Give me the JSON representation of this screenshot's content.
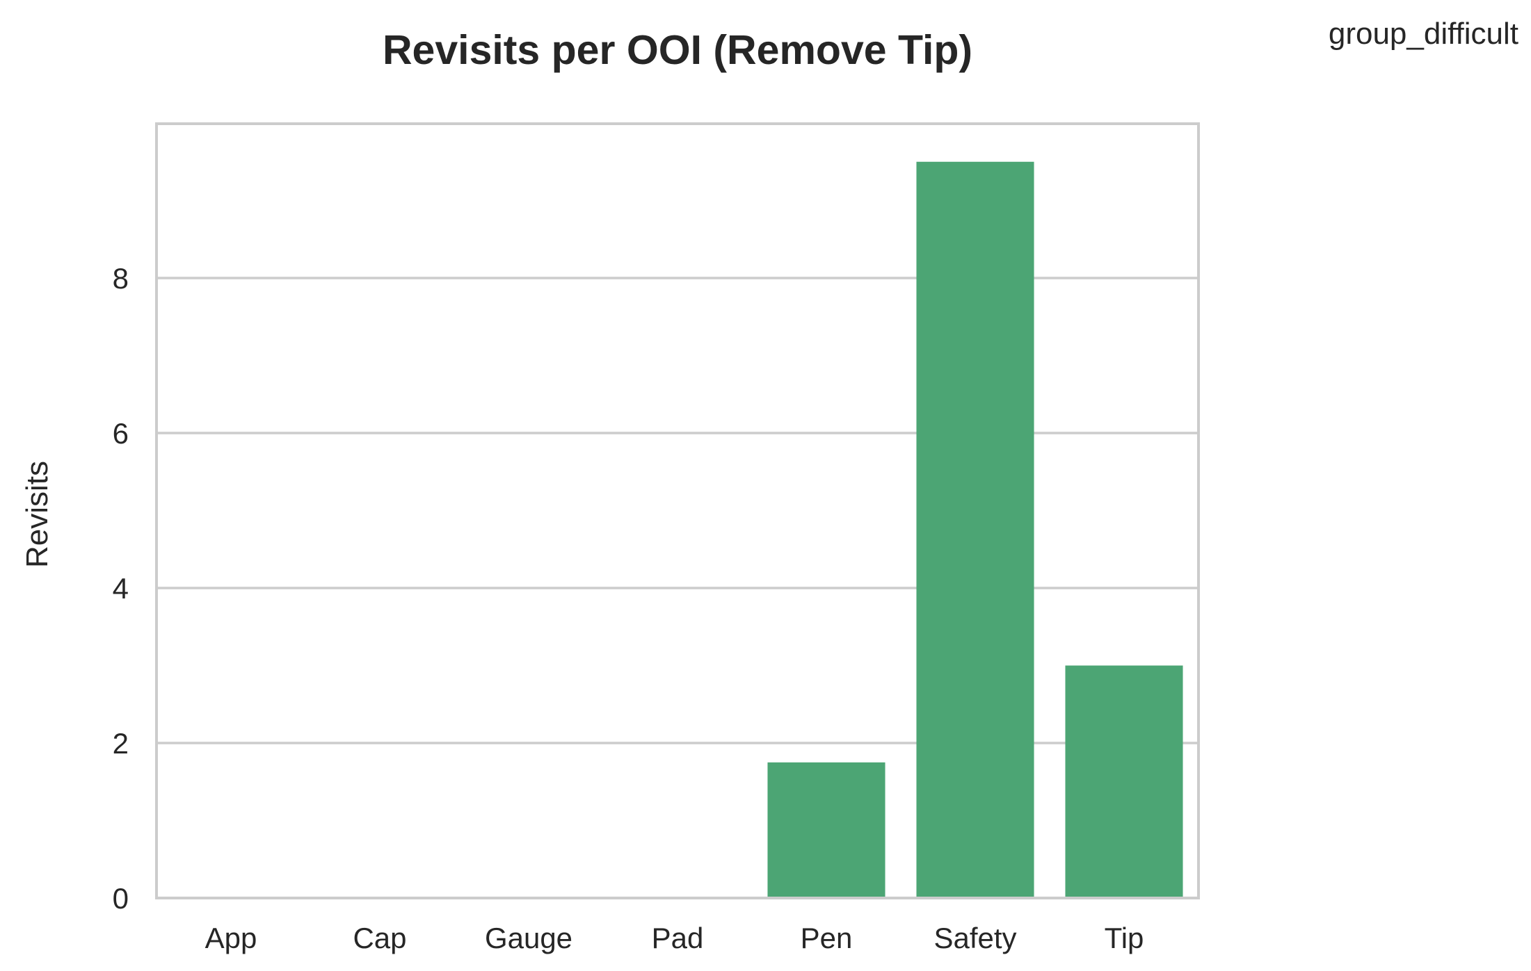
{
  "chart_data": {
    "type": "bar",
    "title": "Revisits per OOI (Remove Tip)",
    "legend_title": "group_difficult",
    "legend_position": "top-right",
    "xlabel": "",
    "ylabel": "Revisits",
    "categories": [
      "App",
      "Cap",
      "Gauge",
      "Pad",
      "Pen",
      "Safety",
      "Tip"
    ],
    "values": [
      0,
      0,
      0,
      0,
      1.75,
      9.5,
      3.0
    ],
    "ylim": [
      0,
      10
    ],
    "yticks": [
      0,
      2,
      4,
      6,
      8
    ],
    "grid": "y",
    "bar_color": "#4ca574",
    "grid_color": "#cccccc",
    "frame_color": "#cccccc"
  }
}
